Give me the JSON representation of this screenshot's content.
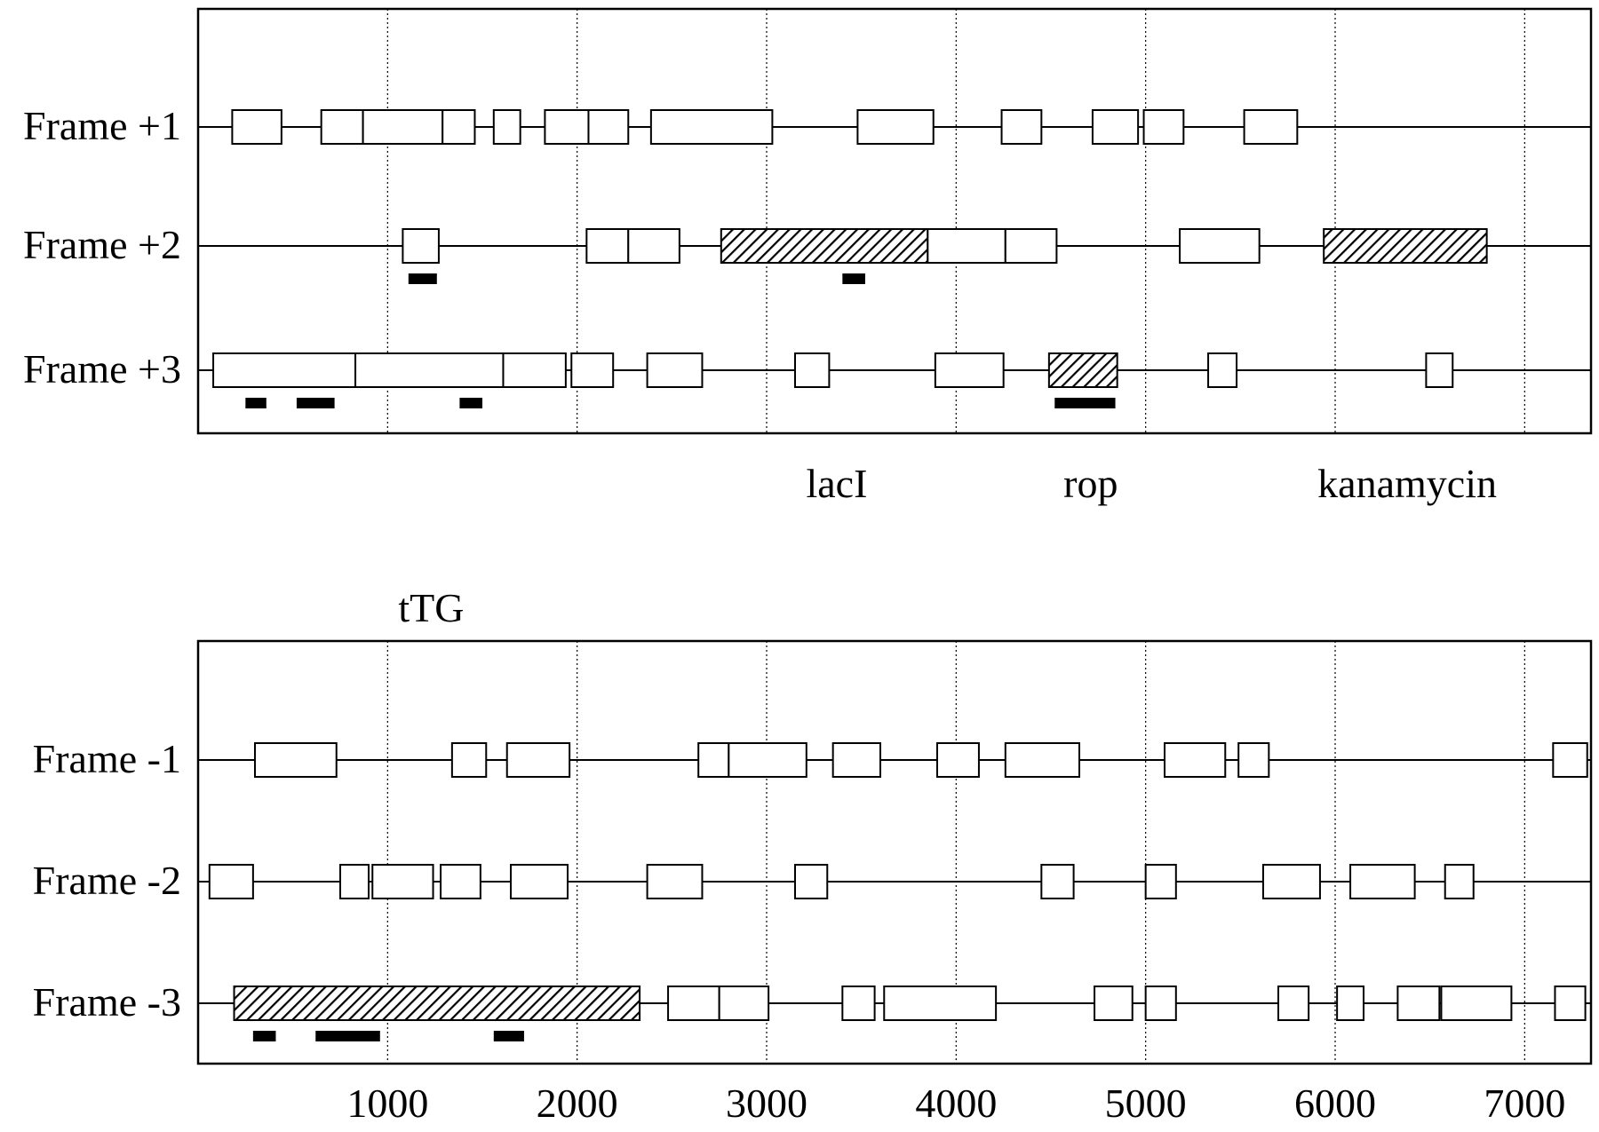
{
  "axis": {
    "unit": "bp",
    "min": 0,
    "max": 7350,
    "tick_labels": [
      "1000",
      "2000",
      "3000",
      "4000",
      "5000",
      "6000",
      "7000"
    ],
    "ticks": [
      1000,
      2000,
      3000,
      4000,
      5000,
      6000,
      7000
    ],
    "vertical_grid": true
  },
  "panels": [
    {
      "id": "forward",
      "rows": [
        {
          "label": "Frame +1",
          "orfs": [
            {
              "start": 180,
              "end": 440
            },
            {
              "start": 650,
              "end": 870
            },
            {
              "start": 870,
              "end": 1290
            },
            {
              "start": 1290,
              "end": 1460
            },
            {
              "start": 1560,
              "end": 1700
            },
            {
              "start": 1830,
              "end": 2060
            },
            {
              "start": 2060,
              "end": 2270
            },
            {
              "start": 2390,
              "end": 3030
            },
            {
              "start": 3480,
              "end": 3880
            },
            {
              "start": 4240,
              "end": 4450
            },
            {
              "start": 4720,
              "end": 4960
            },
            {
              "start": 4990,
              "end": 5200
            },
            {
              "start": 5520,
              "end": 5800
            }
          ],
          "marks": []
        },
        {
          "label": "Frame +2",
          "orfs": [
            {
              "start": 1080,
              "end": 1270
            },
            {
              "start": 2050,
              "end": 2270
            },
            {
              "start": 2270,
              "end": 2540
            },
            {
              "start": 2760,
              "end": 3850,
              "hatched": true
            },
            {
              "start": 3850,
              "end": 4260
            },
            {
              "start": 4260,
              "end": 4530
            },
            {
              "start": 5180,
              "end": 5600
            },
            {
              "start": 5940,
              "end": 6800,
              "hatched": true
            }
          ],
          "marks": [
            {
              "start": 1110,
              "end": 1260
            },
            {
              "start": 3400,
              "end": 3520
            }
          ]
        },
        {
          "label": "Frame +3",
          "orfs": [
            {
              "start": 80,
              "end": 830
            },
            {
              "start": 830,
              "end": 1610
            },
            {
              "start": 1610,
              "end": 1940
            },
            {
              "start": 1970,
              "end": 2190
            },
            {
              "start": 2370,
              "end": 2660
            },
            {
              "start": 3150,
              "end": 3330
            },
            {
              "start": 3890,
              "end": 4250
            },
            {
              "start": 4490,
              "end": 4850,
              "hatched": true
            },
            {
              "start": 5330,
              "end": 5480
            },
            {
              "start": 6480,
              "end": 6620
            }
          ],
          "marks": [
            {
              "start": 250,
              "end": 360
            },
            {
              "start": 520,
              "end": 720
            },
            {
              "start": 1380,
              "end": 1500
            },
            {
              "start": 4520,
              "end": 4840
            }
          ]
        }
      ],
      "annotations": [
        {
          "text": "lacI",
          "x": 3370
        },
        {
          "text": "rop",
          "x": 4710
        },
        {
          "text": "kanamycin",
          "x": 6380
        }
      ]
    },
    {
      "id": "reverse",
      "title": "tTG",
      "title_x": 1230,
      "rows": [
        {
          "label": "Frame -1",
          "orfs": [
            {
              "start": 300,
              "end": 730
            },
            {
              "start": 1340,
              "end": 1520
            },
            {
              "start": 1630,
              "end": 1960
            },
            {
              "start": 2640,
              "end": 2800
            },
            {
              "start": 2800,
              "end": 3210
            },
            {
              "start": 3350,
              "end": 3600
            },
            {
              "start": 3900,
              "end": 4120
            },
            {
              "start": 4260,
              "end": 4650
            },
            {
              "start": 5100,
              "end": 5420
            },
            {
              "start": 5490,
              "end": 5650
            },
            {
              "start": 7150,
              "end": 7330
            }
          ],
          "marks": []
        },
        {
          "label": "Frame -2",
          "orfs": [
            {
              "start": 60,
              "end": 290
            },
            {
              "start": 750,
              "end": 900
            },
            {
              "start": 920,
              "end": 1240
            },
            {
              "start": 1280,
              "end": 1490
            },
            {
              "start": 1650,
              "end": 1950
            },
            {
              "start": 2370,
              "end": 2660
            },
            {
              "start": 3150,
              "end": 3320
            },
            {
              "start": 4450,
              "end": 4620
            },
            {
              "start": 5000,
              "end": 5160
            },
            {
              "start": 5620,
              "end": 5920
            },
            {
              "start": 6080,
              "end": 6420
            },
            {
              "start": 6580,
              "end": 6730
            }
          ],
          "marks": []
        },
        {
          "label": "Frame -3",
          "orfs": [
            {
              "start": 190,
              "end": 2330,
              "hatched": true
            },
            {
              "start": 2480,
              "end": 2750
            },
            {
              "start": 2750,
              "end": 3010
            },
            {
              "start": 3400,
              "end": 3570
            },
            {
              "start": 3620,
              "end": 4210
            },
            {
              "start": 4730,
              "end": 4930
            },
            {
              "start": 5000,
              "end": 5160
            },
            {
              "start": 5700,
              "end": 5860
            },
            {
              "start": 6010,
              "end": 6150
            },
            {
              "start": 6330,
              "end": 6550
            },
            {
              "start": 6560,
              "end": 6930
            },
            {
              "start": 7160,
              "end": 7320
            }
          ],
          "marks": [
            {
              "start": 290,
              "end": 410
            },
            {
              "start": 620,
              "end": 960
            },
            {
              "start": 1560,
              "end": 1720
            }
          ]
        }
      ]
    }
  ]
}
